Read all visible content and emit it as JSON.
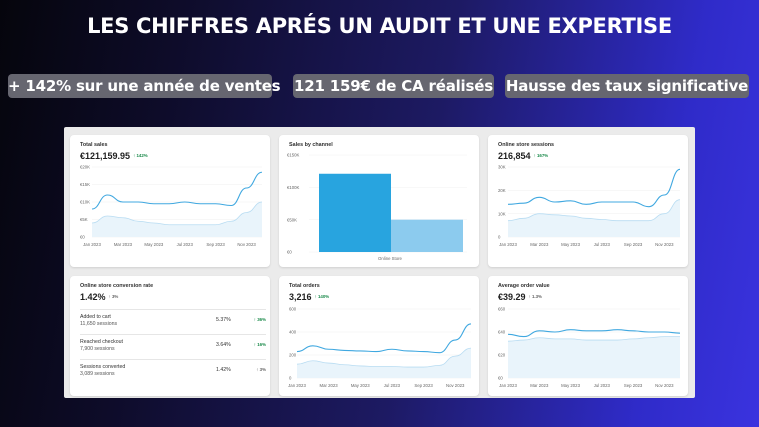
{
  "headline": "LES CHIFFRES APRÉS UN AUDIT ET UNE EXPERTISE",
  "pills": [
    "+ 142% sur une année de ventes",
    "121 159€ de CA réalisés",
    "Hausse des taux significative"
  ],
  "cards": {
    "total_sales": {
      "title": "Total sales",
      "value": "€121,159.95",
      "delta": "142%",
      "yticks": [
        "€20K",
        "€15K",
        "€10K",
        "€5K",
        "€0"
      ],
      "xticks": [
        "Jan 2023",
        "Mar 2023",
        "May 2023",
        "Jul 2023",
        "Sep 2023",
        "Nov 2023"
      ]
    },
    "sales_by_channel": {
      "title": "Sales by channel",
      "yticks": [
        "€150K",
        "€100K",
        "€50K",
        "€0"
      ],
      "xtick": "Online Store"
    },
    "sessions": {
      "title": "Online store sessions",
      "value": "216,854",
      "delta": "167%",
      "yticks": [
        "30K",
        "20K",
        "10K",
        "0"
      ],
      "xticks": [
        "Jan 2023",
        "Mar 2023",
        "May 2023",
        "Jul 2023",
        "Sep 2023",
        "Nov 2023"
      ]
    },
    "conversion": {
      "title": "Online store conversion rate",
      "value": "1.42%",
      "delta": "3%",
      "rows": [
        {
          "name": "Added to cart",
          "sessions": "11,650 sessions",
          "pct": "5.37%",
          "delta": "36%"
        },
        {
          "name": "Reached checkout",
          "sessions": "7,900 sessions",
          "pct": "3.64%",
          "delta": "16%"
        },
        {
          "name": "Sessions converted",
          "sessions": "3,089 sessions",
          "pct": "1.42%",
          "delta": "3%"
        }
      ]
    },
    "orders": {
      "title": "Total orders",
      "value": "3,216",
      "delta": "140%",
      "yticks": [
        "600",
        "400",
        "200",
        "0"
      ],
      "xticks": [
        "Jan 2023",
        "Mar 2023",
        "May 2023",
        "Jul 2023",
        "Sep 2023",
        "Nov 2023"
      ]
    },
    "aov": {
      "title": "Average order value",
      "value": "€39.29",
      "delta": "1.3%",
      "yticks": [
        "€60",
        "€40",
        "€20",
        "€0"
      ],
      "xticks": [
        "Jan 2023",
        "Mar 2023",
        "May 2023",
        "Jul 2023",
        "Sep 2023",
        "Nov 2023"
      ]
    }
  },
  "colors": {
    "series_current": "#40a8e0",
    "series_previous": "#b8dcf2",
    "bar_primary": "#28a4df",
    "bar_secondary": "#8ccbee",
    "delta_up": "#1a8a4a"
  },
  "chart_data": [
    {
      "type": "line",
      "title": "Total sales",
      "x": [
        "Jan 2023",
        "Feb 2023",
        "Mar 2023",
        "Apr 2023",
        "May 2023",
        "Jun 2023",
        "Jul 2023",
        "Aug 2023",
        "Sep 2023",
        "Oct 2023",
        "Nov 2023",
        "Dec 2023"
      ],
      "ylim": [
        0,
        20000
      ],
      "series": [
        {
          "values": [
            8000,
            12000,
            10000,
            10000,
            9500,
            9500,
            10000,
            9500,
            9500,
            9000,
            14000,
            18500
          ]
        },
        {
          "values": [
            4000,
            6000,
            5500,
            4500,
            4000,
            3500,
            3500,
            3500,
            3500,
            4500,
            7000,
            10000
          ]
        }
      ]
    },
    {
      "type": "bar",
      "title": "Sales by channel",
      "categories": [
        "Online Store"
      ],
      "ylim": [
        0,
        150000
      ],
      "series": [
        {
          "values": [
            121000
          ]
        },
        {
          "values": [
            50000
          ]
        }
      ]
    },
    {
      "type": "line",
      "title": "Online store sessions",
      "x": [
        "Jan 2023",
        "Feb 2023",
        "Mar 2023",
        "Apr 2023",
        "May 2023",
        "Jun 2023",
        "Jul 2023",
        "Aug 2023",
        "Sep 2023",
        "Oct 2023",
        "Nov 2023",
        "Dec 2023"
      ],
      "ylim": [
        0,
        30000
      ],
      "series": [
        {
          "values": [
            14000,
            14500,
            17000,
            15000,
            15500,
            14000,
            15000,
            15000,
            15000,
            13000,
            18000,
            29000
          ]
        },
        {
          "values": [
            7000,
            8000,
            10000,
            9500,
            9000,
            8000,
            7500,
            7000,
            7000,
            7000,
            10000,
            16000
          ]
        }
      ]
    },
    {
      "type": "line",
      "title": "Total orders",
      "x": [
        "Jan 2023",
        "Feb 2023",
        "Mar 2023",
        "Apr 2023",
        "May 2023",
        "Jun 2023",
        "Jul 2023",
        "Aug 2023",
        "Sep 2023",
        "Oct 2023",
        "Nov 2023",
        "Dec 2023"
      ],
      "ylim": [
        0,
        600
      ],
      "series": [
        {
          "values": [
            230,
            280,
            250,
            240,
            235,
            230,
            250,
            235,
            230,
            220,
            330,
            470
          ]
        },
        {
          "values": [
            120,
            150,
            130,
            115,
            105,
            100,
            100,
            95,
            95,
            110,
            190,
            260
          ]
        }
      ]
    },
    {
      "type": "line",
      "title": "Average order value",
      "x": [
        "Jan 2023",
        "Feb 2023",
        "Mar 2023",
        "Apr 2023",
        "May 2023",
        "Jun 2023",
        "Jul 2023",
        "Aug 2023",
        "Sep 2023",
        "Oct 2023",
        "Nov 2023",
        "Dec 2023"
      ],
      "ylim": [
        0,
        60
      ],
      "series": [
        {
          "values": [
            38,
            36,
            41,
            40,
            42,
            41,
            41,
            42,
            41,
            40,
            40,
            39
          ]
        },
        {
          "values": [
            32,
            33,
            35,
            34,
            34,
            33,
            33,
            33,
            34,
            35,
            36,
            36
          ]
        }
      ]
    }
  ]
}
